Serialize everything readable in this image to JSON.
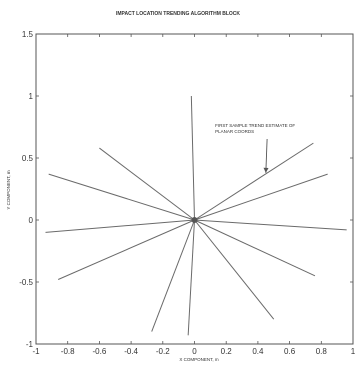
{
  "chart_data": {
    "type": "line",
    "title": "IMPACT LOCATION TRENDING ALGORITHM BLOCK",
    "xlabel": "X COMPONENT, m",
    "ylabel": "Y COMPONENT, m",
    "xlim": [
      -1,
      1
    ],
    "ylim": [
      -1,
      1.5
    ],
    "x_ticks": [
      -1,
      -0.8,
      -0.6,
      -0.4,
      -0.2,
      0,
      0.2,
      0.4,
      0.6,
      0.8,
      1
    ],
    "x_tick_labels": [
      "-1",
      "-0.8",
      "-0.6",
      "-0.4",
      "-0.2",
      "0",
      "0.2",
      "0.4",
      "0.6",
      "0.8",
      "1"
    ],
    "y_ticks": [
      -1,
      -0.5,
      0,
      0.5,
      1,
      1.5
    ],
    "y_tick_labels": [
      "-1",
      "-0.5",
      "0",
      "0.5",
      "1",
      "1.5"
    ],
    "grid": false,
    "origin": [
      0,
      0
    ],
    "series": [
      {
        "x": [
          0,
          -0.92
        ],
        "y": [
          0,
          0.37
        ]
      },
      {
        "x": [
          0,
          -0.6
        ],
        "y": [
          0,
          0.58
        ]
      },
      {
        "x": [
          0,
          -0.94
        ],
        "y": [
          0,
          -0.1
        ]
      },
      {
        "x": [
          0,
          -0.86
        ],
        "y": [
          0,
          -0.48
        ]
      },
      {
        "x": [
          0,
          -0.27
        ],
        "y": [
          0,
          -0.9
        ]
      },
      {
        "x": [
          0,
          -0.04
        ],
        "y": [
          0,
          -0.93
        ]
      },
      {
        "x": [
          0,
          -0.02
        ],
        "y": [
          0,
          1.0
        ]
      },
      {
        "x": [
          0,
          0.75
        ],
        "y": [
          0,
          0.62
        ]
      },
      {
        "x": [
          0,
          0.84
        ],
        "y": [
          0,
          0.37
        ]
      },
      {
        "x": [
          0,
          0.96
        ],
        "y": [
          0,
          -0.08
        ]
      },
      {
        "x": [
          0,
          0.76
        ],
        "y": [
          0,
          -0.45
        ]
      },
      {
        "x": [
          0,
          0.5
        ],
        "y": [
          0,
          -0.8
        ]
      }
    ],
    "annotation": {
      "text_lines": [
        "FIRST SAMPLE TREND ESTIMATE OF",
        "PLANAR COORDS"
      ],
      "x": 0.13,
      "y": 0.75,
      "arrow_to": [
        0.45,
        0.38
      ]
    }
  }
}
